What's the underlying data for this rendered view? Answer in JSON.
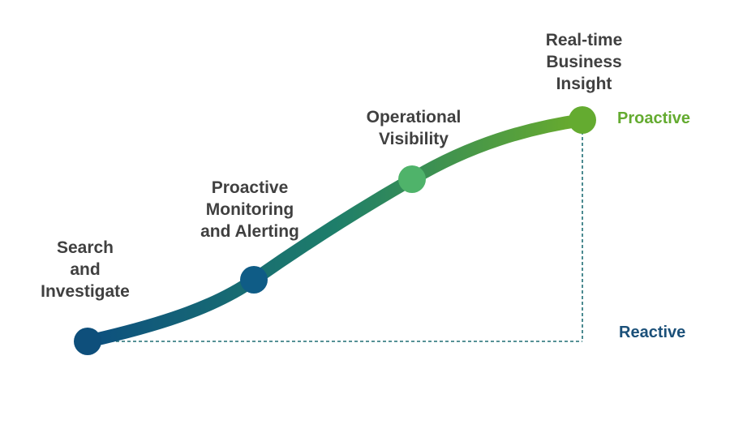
{
  "stages": [
    {
      "label": "Search\nand\nInvestigate",
      "color": "#0e4f7b"
    },
    {
      "label": "Proactive\nMonitoring\nand Alerting",
      "color": "#0f5c86"
    },
    {
      "label": "Operational\nVisibility",
      "color": "#4fb36a"
    },
    {
      "label": "Real-time\nBusiness\nInsight",
      "color": "#64ab30"
    }
  ],
  "levels": {
    "top": {
      "label": "Proactive",
      "color": "#64ab30"
    },
    "bottom": {
      "label": "Reactive",
      "color": "#1b5079"
    }
  },
  "colors": {
    "curve_start": "#0d4f7f",
    "curve_end": "#6aac2c",
    "guide": "#1e6d74"
  }
}
